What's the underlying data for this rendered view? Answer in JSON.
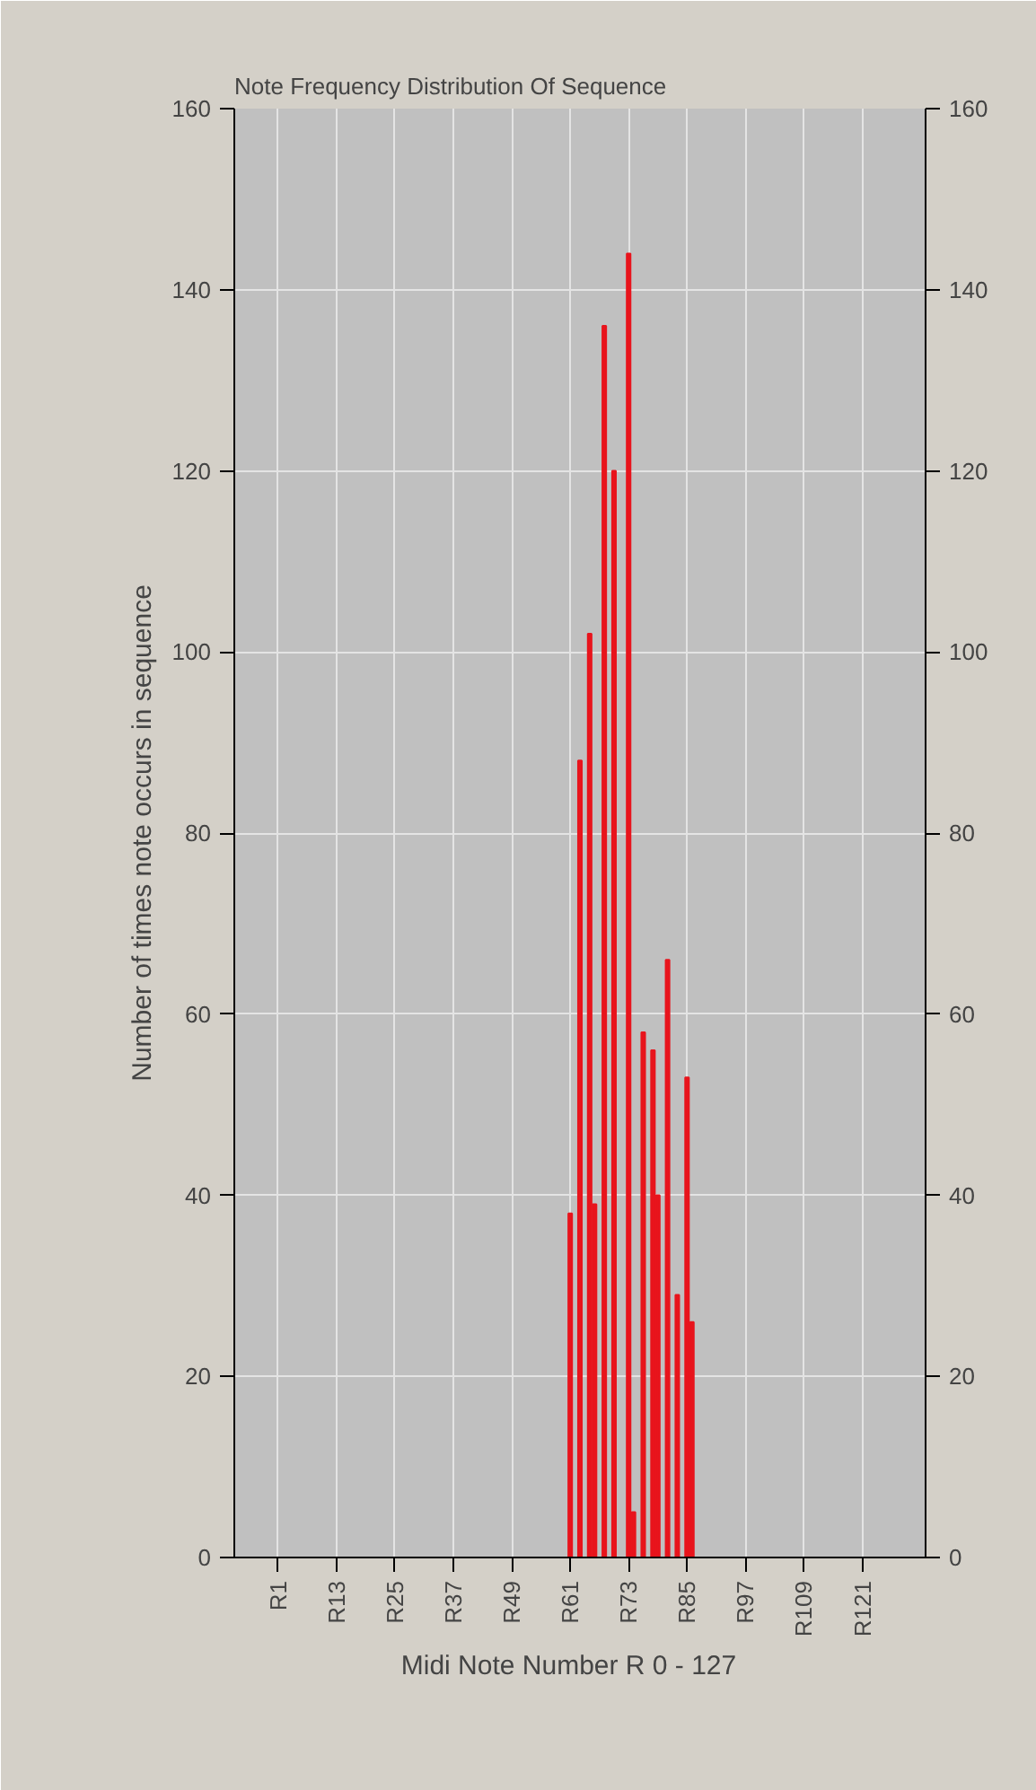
{
  "chart_data": {
    "type": "bar",
    "title": "Note Frequency Distribution Of Sequence",
    "xlabel": "Midi Note Number R    0 - 127",
    "ylabel": "Number of times note occurs in sequence",
    "categories": [
      null,
      "R1",
      null,
      null,
      null,
      null,
      null,
      null,
      null,
      null,
      null,
      null,
      null,
      "R13",
      null,
      null,
      null,
      null,
      null,
      null,
      null,
      null,
      null,
      null,
      null,
      "R25",
      null,
      null,
      null,
      null,
      null,
      null,
      null,
      null,
      null,
      null,
      null,
      "R37",
      null,
      null,
      null,
      null,
      null,
      null,
      null,
      null,
      null,
      null,
      null,
      "R49",
      null,
      null,
      null,
      null,
      null,
      null,
      null,
      null,
      null,
      null,
      null,
      "R61",
      null,
      null,
      null,
      null,
      null,
      null,
      null,
      null,
      null,
      null,
      null,
      "R73",
      null,
      null,
      null,
      null,
      null,
      null,
      null,
      null,
      null,
      null,
      null,
      "R85",
      null,
      null,
      null,
      null,
      null,
      null,
      null,
      null,
      null,
      null,
      null,
      "R97",
      null,
      null,
      null,
      null,
      null,
      null,
      null,
      null,
      null,
      null,
      null,
      "R109",
      null,
      null,
      null,
      null,
      null,
      null,
      null,
      null,
      null,
      null,
      null,
      "R121",
      null,
      null,
      null,
      null,
      null,
      null
    ],
    "series": [
      {
        "color": "#e8141c",
        "values": [
          null,
          null,
          null,
          null,
          null,
          null,
          null,
          null,
          null,
          null,
          null,
          null,
          null,
          null,
          null,
          null,
          null,
          null,
          null,
          null,
          null,
          null,
          null,
          null,
          null,
          null,
          null,
          null,
          null,
          null,
          null,
          null,
          null,
          null,
          null,
          null,
          null,
          null,
          null,
          null,
          null,
          null,
          null,
          null,
          null,
          null,
          null,
          null,
          null,
          null,
          null,
          null,
          null,
          null,
          null,
          null,
          null,
          null,
          null,
          null,
          null,
          38,
          null,
          88,
          null,
          102,
          39,
          null,
          136,
          null,
          120,
          null,
          null,
          144,
          5,
          null,
          58,
          null,
          56,
          40,
          null,
          66,
          null,
          29,
          null,
          53,
          26,
          null,
          null,
          null,
          null,
          null,
          null,
          null,
          null,
          null,
          null,
          null,
          null,
          null,
          null,
          null,
          null,
          null,
          null,
          null,
          null,
          null,
          null,
          null,
          null,
          null,
          null,
          null,
          null,
          null,
          null,
          null,
          null,
          null,
          null,
          null,
          null,
          null,
          null,
          null,
          null,
          null
        ]
      }
    ],
    "ylim": [
      0,
      160
    ],
    "yticks": [
      0,
      20,
      40,
      60,
      80,
      100,
      120,
      140,
      160
    ],
    "y2lim": [
      0,
      160
    ],
    "y2ticks": [
      0,
      20,
      40,
      60,
      80,
      100,
      120,
      140,
      160
    ],
    "grid": true
  }
}
